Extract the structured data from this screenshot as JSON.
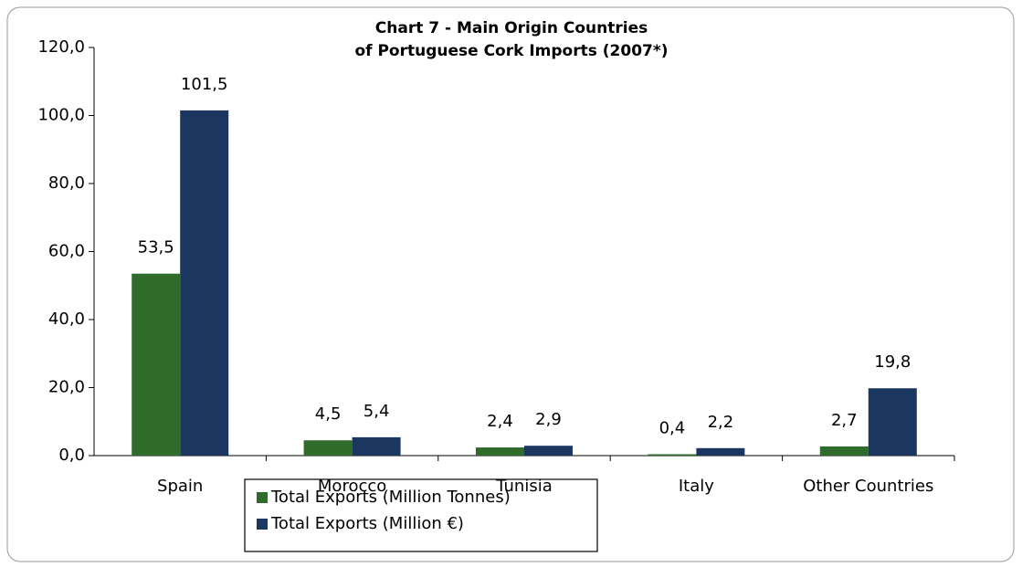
{
  "chart_data": {
    "type": "bar",
    "title": [
      "Chart 7 - Main Origin Countries",
      "of Portuguese Cork Imports (2007*)"
    ],
    "categories": [
      "Spain",
      "Morocco",
      "Tunisia",
      "Italy",
      "Other Countries"
    ],
    "series": [
      {
        "name": "Total Exports (Million Tonnes)",
        "color": "#2f6b2b",
        "values": [
          53.5,
          4.5,
          2.4,
          0.4,
          2.7
        ],
        "value_labels": [
          "53,5",
          "4,5",
          "2,4",
          "0,4",
          "2,7"
        ]
      },
      {
        "name": "Total Exports (Million €)",
        "color": "#1b375f",
        "values": [
          101.5,
          5.4,
          2.9,
          2.2,
          19.8
        ],
        "value_labels": [
          "101,5",
          "5,4",
          "2,9",
          "2,2",
          "19,8"
        ]
      }
    ],
    "ylim": [
      0,
      120
    ],
    "yticks": [
      {
        "value": 0,
        "label": "0,0"
      },
      {
        "value": 20,
        "label": "20,0"
      },
      {
        "value": 40,
        "label": "40,0"
      },
      {
        "value": 60,
        "label": "60,0"
      },
      {
        "value": 80,
        "label": "80,0"
      },
      {
        "value": 100,
        "label": "100,0"
      },
      {
        "value": 120,
        "label": "120,0"
      }
    ],
    "legend": "bottom"
  }
}
